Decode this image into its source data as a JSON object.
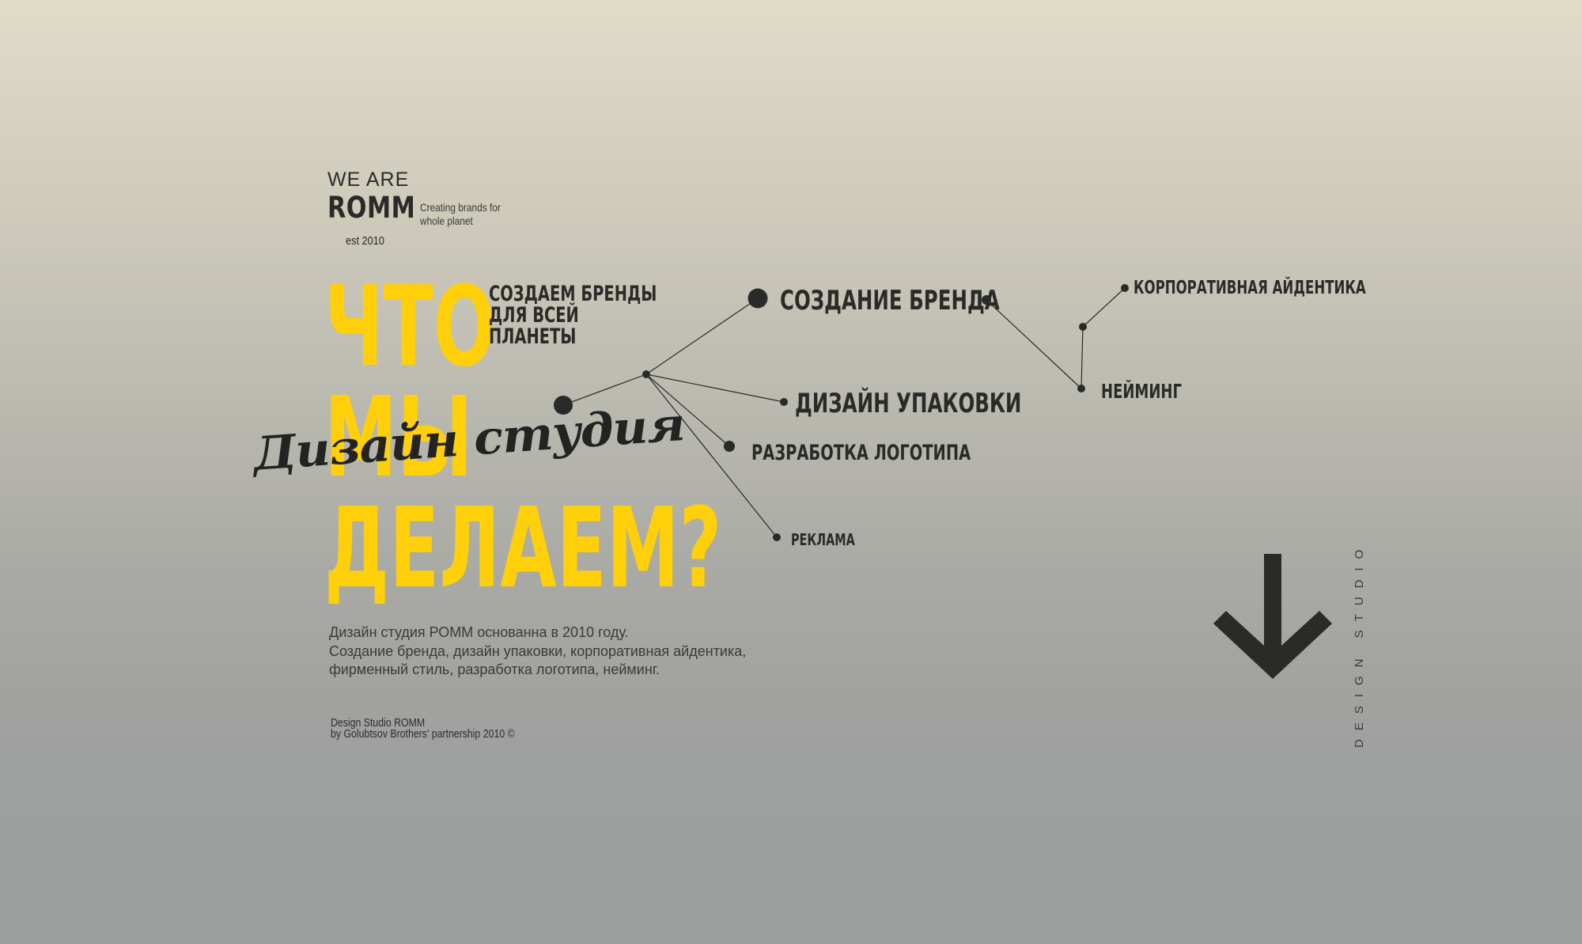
{
  "logo": {
    "we_are": "WE ARE",
    "name": "ROMM",
    "tagline_line1": "Creating brands for",
    "tagline_line2": "whole planet",
    "est": "est  2010"
  },
  "hero": {
    "line1": "ЧТО",
    "line2": "МЫ",
    "line3": "ДЕЛАЕМ?",
    "script_text": "Дизайн студия",
    "sub_line1": "СОЗДАЕМ БРЕНДЫ",
    "sub_line2": "ДЛЯ ВСЕЙ",
    "sub_line3": "ПЛАНЕТЫ"
  },
  "services": {
    "brand": "СОЗДАНИЕ БРЕНДА",
    "packaging": "ДИЗАЙН УПАКОВКИ",
    "logo": "РАЗРАБОТКА ЛОГОТИПА",
    "ads": "РЕКЛАМА",
    "corporate": "КОРПОРАТИВНАЯ АЙДЕНТИКА",
    "naming": "НЕЙМИНГ"
  },
  "description": {
    "line1": "Дизайн студия РОММ основанна в 2010 году.",
    "line2": "Создание бренда, дизайн упаковки, корпоративная айдентика,",
    "line3": "фирменный стиль, разработка логотипа, нейминг."
  },
  "footer": {
    "line1": "Design Studio ROMM",
    "line2": "by Golubtsov Brothers' partnership 2010 ©"
  },
  "vertical_label": "DESIGN STUDIO",
  "icons": {
    "scroll": "arrow-down-icon"
  },
  "colors": {
    "accent": "#ffcf0a",
    "text": "#2a2a28"
  }
}
